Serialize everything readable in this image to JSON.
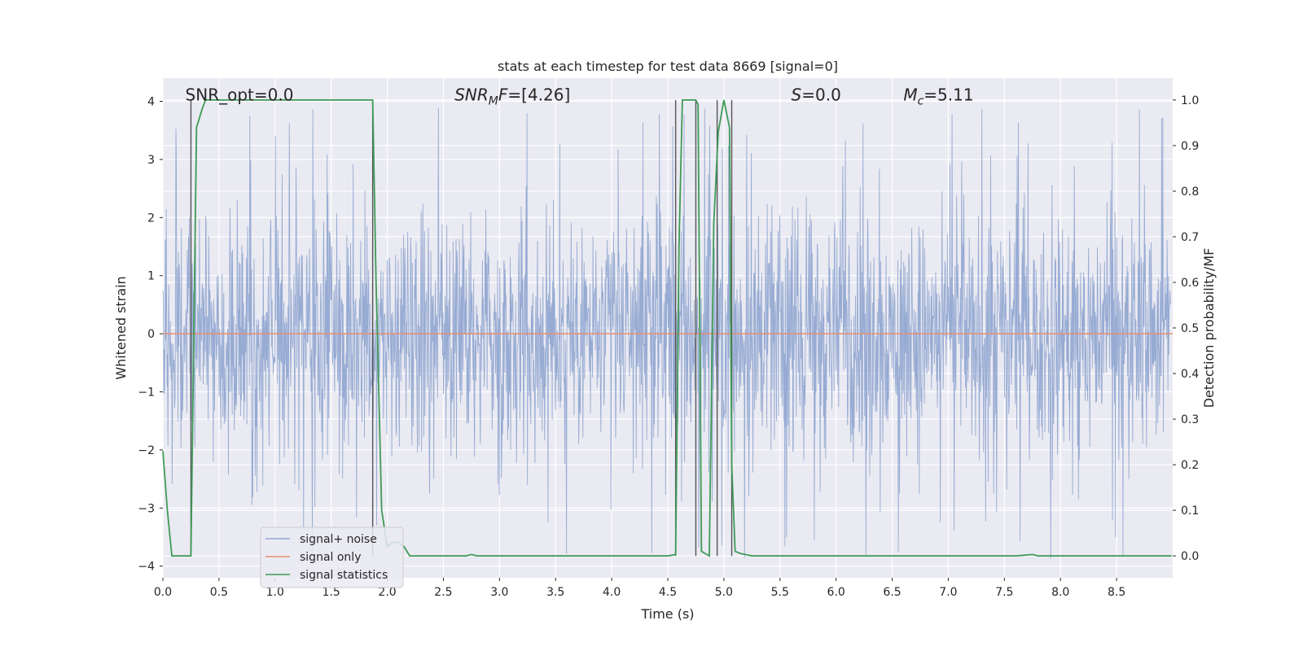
{
  "chart_data": {
    "type": "line",
    "title": "stats at each timestep for test data 8669 [signal=0]",
    "xlabel": "Time (s)",
    "ylabel": "Whitened strain",
    "y2label": "Detection probability/MF",
    "xlim": [
      0.0,
      9.0
    ],
    "ylim": [
      -4.2,
      4.4
    ],
    "y2lim": [
      -0.048,
      1.048
    ],
    "xticks": [
      0.0,
      0.5,
      1.0,
      1.5,
      2.0,
      2.5,
      3.0,
      3.5,
      4.0,
      4.5,
      5.0,
      5.5,
      6.0,
      6.5,
      7.0,
      7.5,
      8.0,
      8.5
    ],
    "xtick_labels": [
      "0.0",
      "0.5",
      "1.0",
      "1.5",
      "2.0",
      "2.5",
      "3.0",
      "3.5",
      "4.0",
      "4.5",
      "5.0",
      "5.5",
      "6.0",
      "6.5",
      "7.0",
      "7.5",
      "8.0",
      "8.5"
    ],
    "yticks": [
      4,
      3,
      2,
      1,
      0,
      -1,
      -2,
      -3,
      -4
    ],
    "ytick_labels": [
      "4",
      "3",
      "2",
      "1",
      "0",
      "−1",
      "−2",
      "−3",
      "−4"
    ],
    "y2ticks": [
      1.0,
      0.9,
      0.8,
      0.7,
      0.6,
      0.5,
      0.4,
      0.3,
      0.2,
      0.1,
      0.0
    ],
    "y2tick_labels": [
      "1.0",
      "0.9",
      "0.8",
      "0.7",
      "0.6",
      "0.5",
      "0.4",
      "0.3",
      "0.2",
      "0.1",
      "0.0"
    ],
    "grid": true,
    "legend_position": "lower-left",
    "annotations": [
      {
        "name": "snr-opt",
        "x": 0.2,
        "y": 4.1,
        "text": "SNR_opt=0.0"
      },
      {
        "name": "snr-mf",
        "x": 2.6,
        "y": 4.1,
        "base": "SNR",
        "sub": "M",
        "suffix": "F=[4.26]"
      },
      {
        "name": "s-value",
        "x": 5.6,
        "y": 4.1,
        "base": "S",
        "suffix": "=0.0"
      },
      {
        "name": "mc-value",
        "x": 6.6,
        "y": 4.1,
        "base": "M",
        "sub": "c",
        "suffix": "=5.11"
      }
    ],
    "series": [
      {
        "name": "signal+ noise",
        "color": "#92a8d1",
        "kind": "noise",
        "core_amplitude": 1.6,
        "peak_amplitude": 3.9,
        "seed": 8669
      },
      {
        "name": "signal only",
        "color": "#e88e70",
        "x": [
          0.0,
          9.0
        ],
        "y": [
          0.0,
          0.0
        ]
      },
      {
        "name": "signal statistics",
        "color": "#3f9a57",
        "axis": "right",
        "x": [
          0.0,
          0.04,
          0.08,
          0.15,
          0.22,
          0.25,
          0.3,
          0.35,
          0.38,
          0.5,
          1.0,
          1.5,
          1.87,
          1.9,
          1.95,
          2.0,
          2.05,
          2.1,
          2.15,
          2.2,
          2.3,
          2.7,
          2.75,
          2.8,
          3.0,
          4.0,
          4.5,
          4.57,
          4.6,
          4.63,
          4.7,
          4.75,
          4.77,
          4.8,
          4.87,
          4.91,
          4.95,
          5.0,
          5.05,
          5.07,
          5.1,
          5.15,
          5.25,
          5.5,
          6.0,
          7.0,
          7.6,
          7.75,
          7.8,
          8.0,
          8.5,
          8.99
        ],
        "y": [
          0.23,
          0.1,
          0.0,
          0.0,
          0.0,
          0.0,
          0.94,
          0.98,
          1.0,
          1.0,
          1.0,
          1.0,
          1.0,
          0.6,
          0.1,
          0.02,
          0.03,
          0.03,
          0.02,
          0.0,
          0.0,
          0.0,
          0.003,
          0.0,
          0.0,
          0.0,
          0.0,
          0.003,
          0.68,
          1.0,
          1.0,
          1.0,
          0.99,
          0.01,
          0.0,
          0.73,
          0.93,
          1.0,
          0.94,
          0.2,
          0.01,
          0.005,
          0.0,
          0.0,
          0.0,
          0.0,
          0.0,
          0.003,
          0.0,
          0.0,
          0.0,
          0.0
        ]
      }
    ],
    "vlines": [
      0.25,
      1.87,
      4.57,
      4.75,
      4.94,
      5.07
    ]
  },
  "legend": {
    "items": [
      "signal+ noise",
      "signal only",
      "signal statistics"
    ]
  }
}
